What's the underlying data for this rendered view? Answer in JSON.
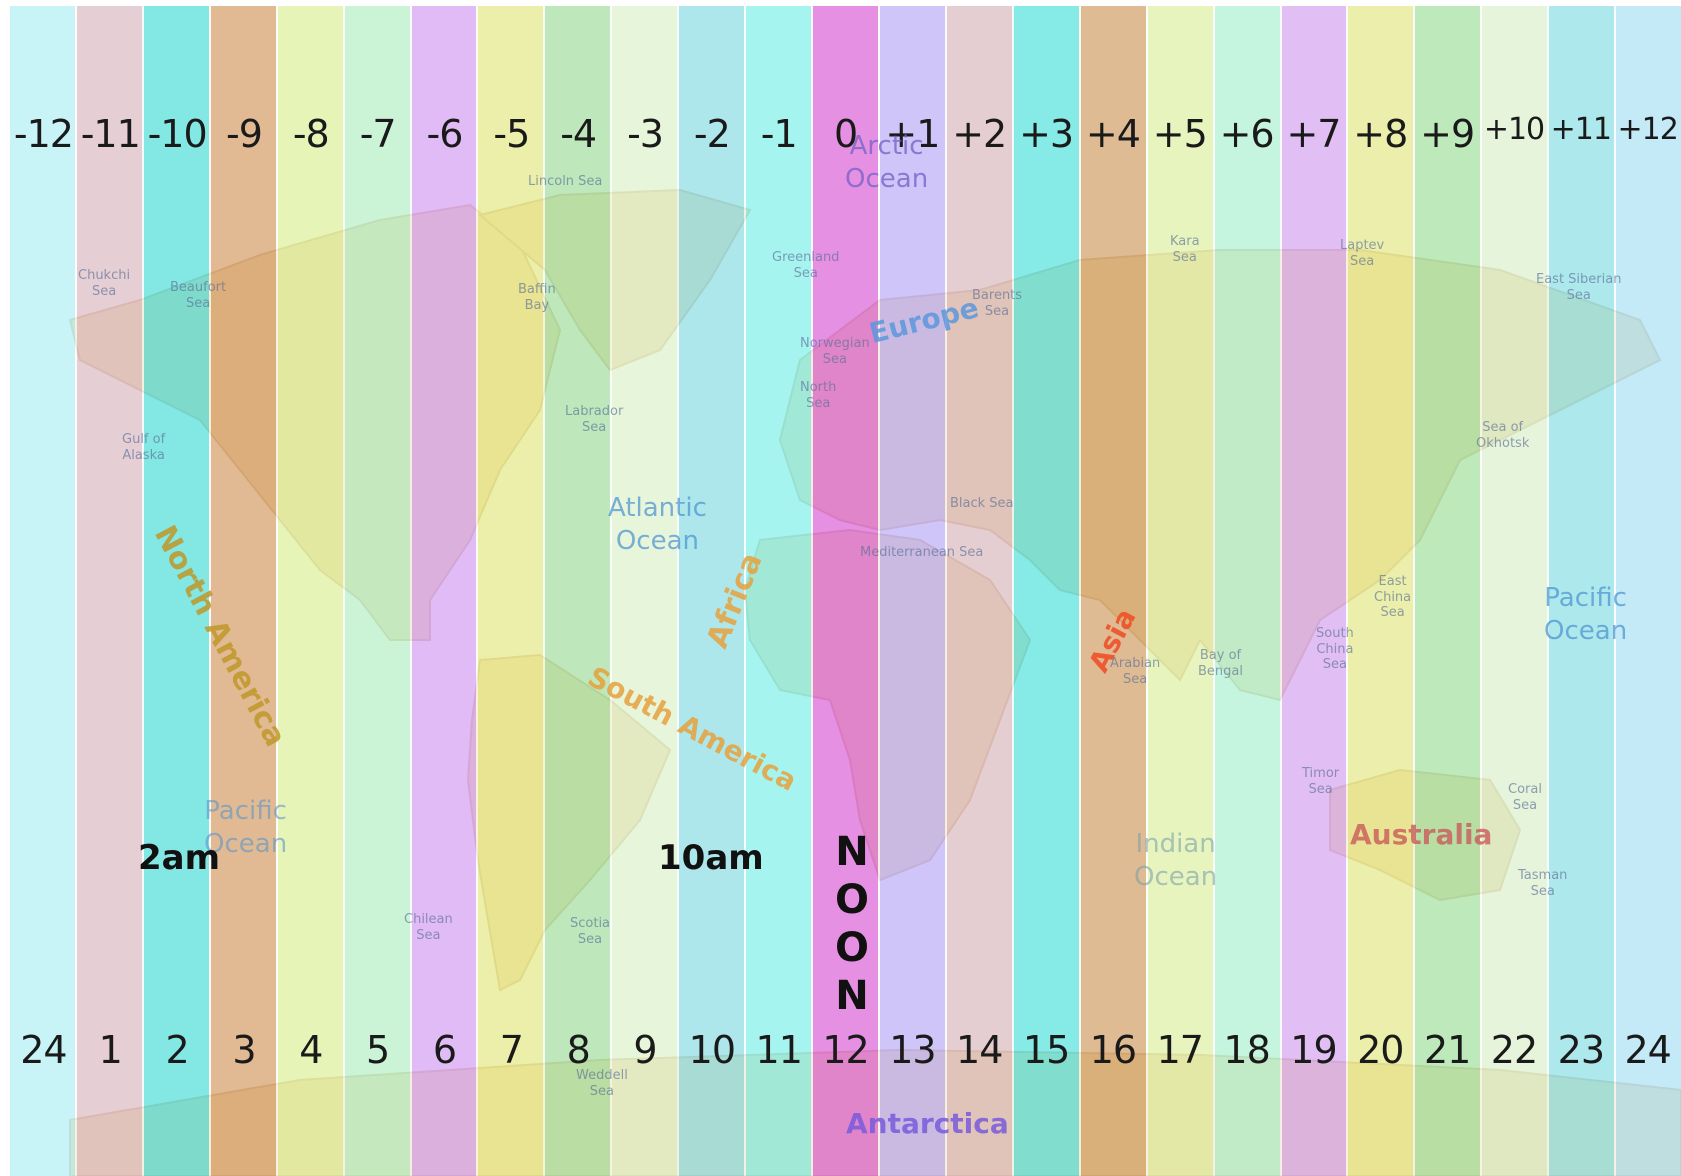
{
  "utc_offsets": [
    "-12",
    "-11",
    "-10",
    "-9",
    "-8",
    "-7",
    "-6",
    "-5",
    "-4",
    "-3",
    "-2",
    "-1",
    "0",
    "+1",
    "+2",
    "+3",
    "+4",
    "+5",
    "+6",
    "+7",
    "+8",
    "+9",
    "+10",
    "+11",
    "+12"
  ],
  "hours": [
    "24",
    "1",
    "2",
    "3",
    "4",
    "5",
    "6",
    "7",
    "8",
    "9",
    "10",
    "11",
    "12",
    "13",
    "14",
    "15",
    "16",
    "17",
    "18",
    "19",
    "20",
    "21",
    "22",
    "23",
    "24"
  ],
  "band_colors": [
    "#b3f0f5",
    "#dcbcc4",
    "#54dedb",
    "#d6a06c",
    "#dff09e",
    "#b8f0c8",
    "#d6a2f2",
    "#e6ea8a",
    "#a6e0a2",
    "#dff2cc",
    "#8edee6",
    "#84f0ea",
    "#dc66d8",
    "#bdb0f8",
    "#dcbcc0",
    "#58e2de",
    "#d2a26a",
    "#e0f0a6",
    "#b0f2d2",
    "#d6a6f0",
    "#e6ea8c",
    "#a6e2a2",
    "#dcf0cc",
    "#8ee0e6",
    "#aee2f6"
  ],
  "time_markers": {
    "two_am": "2am",
    "ten_am": "10am",
    "noon_letters": [
      "N",
      "O",
      "O",
      "N"
    ]
  },
  "continents": {
    "north_america": "North America",
    "south_america": "South America",
    "africa": "Africa",
    "europe": "Europe",
    "asia": "Asia",
    "australia": "Australia",
    "antarctica": "Antarctica"
  },
  "oceans": {
    "arctic": [
      "Arctic",
      "Ocean"
    ],
    "atlantic": [
      "Atlantic",
      "Ocean"
    ],
    "pacific_west": [
      "Pacific",
      "Ocean"
    ],
    "pacific_east": [
      "Pacific",
      "Ocean"
    ],
    "indian": [
      "Indian",
      "Ocean"
    ]
  },
  "seas": {
    "chukchi": [
      "Chukchi",
      "Sea"
    ],
    "beaufort": [
      "Beaufort",
      "Sea"
    ],
    "gulf_alaska": [
      "Gulf of",
      "Alaska"
    ],
    "lincoln": [
      "Lincoln Sea"
    ],
    "baffin": [
      "Baffin",
      "Bay"
    ],
    "labrador": [
      "Labrador",
      "Sea"
    ],
    "greenland": [
      "Greenland",
      "Sea"
    ],
    "norwegian": [
      "Norwegian",
      "Sea"
    ],
    "north": [
      "North",
      "Sea"
    ],
    "barents": [
      "Barents",
      "Sea"
    ],
    "kara": [
      "Kara",
      "Sea"
    ],
    "laptev": [
      "Laptev",
      "Sea"
    ],
    "east_siberian": [
      "East Siberian",
      "Sea"
    ],
    "okhotsk": [
      "Sea of",
      "Okhotsk"
    ],
    "mediterranean": [
      "Mediterranean Sea"
    ],
    "black": [
      "Black Sea"
    ],
    "arabian": [
      "Arabian",
      "Sea"
    ],
    "bengal": [
      "Bay of",
      "Bengal"
    ],
    "east_china": [
      "East",
      "China",
      "Sea"
    ],
    "south_china": [
      "South",
      "China",
      "Sea"
    ],
    "timor": [
      "Timor",
      "Sea"
    ],
    "coral": [
      "Coral",
      "Sea"
    ],
    "tasman": [
      "Tasman",
      "Sea"
    ],
    "chilean": [
      "Chilean",
      "Sea"
    ],
    "scotia": [
      "Scotia",
      "Sea"
    ],
    "weddell": [
      "Weddell",
      "Sea"
    ]
  }
}
